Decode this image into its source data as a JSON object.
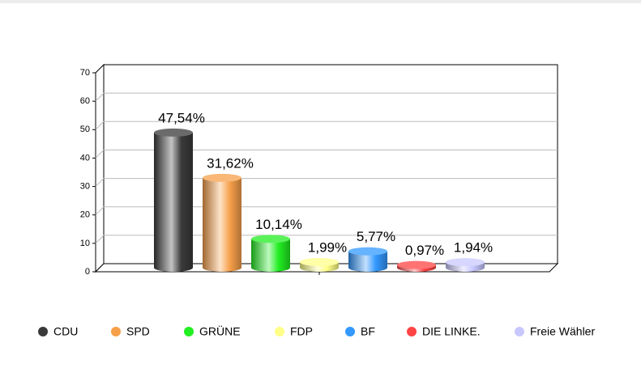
{
  "chart_data": {
    "type": "bar",
    "categories": [
      "CDU",
      "SPD",
      "GRÜNE",
      "FDP",
      "BF",
      "DIE LINKE.",
      "Freie Wähler"
    ],
    "values": [
      47.54,
      31.62,
      10.14,
      1.99,
      5.77,
      0.97,
      1.94
    ],
    "value_labels": [
      "47,54%",
      "31,62%",
      "10,14%",
      "1,99%",
      "5,77%",
      "0,97%",
      "1,94%"
    ],
    "colors": [
      "#3a3a3a",
      "#f7a04a",
      "#22ee22",
      "#ffff88",
      "#3399ff",
      "#ff4444",
      "#c8c8ff"
    ],
    "ylim": [
      0,
      70
    ],
    "yticks": [
      0,
      10,
      20,
      30,
      40,
      50,
      60,
      70
    ],
    "grid": true,
    "legend": "bottom"
  }
}
